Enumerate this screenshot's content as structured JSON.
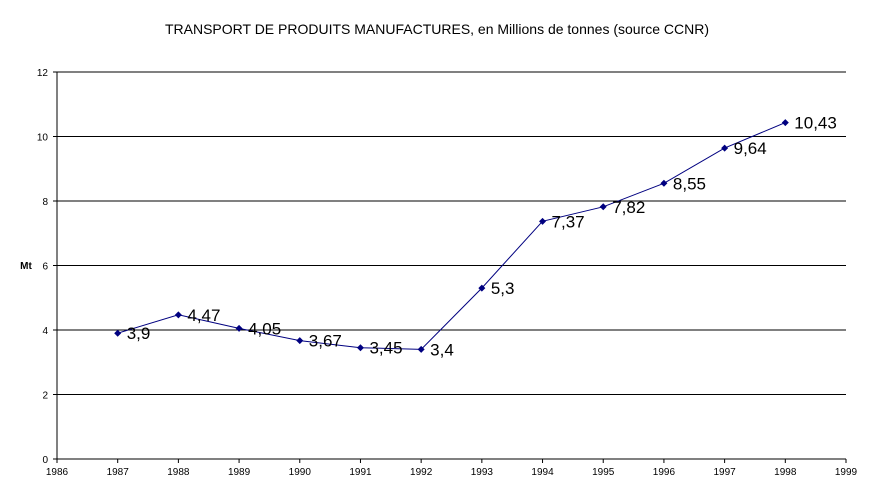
{
  "chart_data": {
    "type": "line",
    "title": "TRANSPORT DE PRODUITS MANUFACTURES, en Millions de tonnes (source CCNR)",
    "xlabel": "",
    "ylabel": "Mt",
    "xlim": [
      1986,
      1999
    ],
    "ylim": [
      0,
      12
    ],
    "x_ticks": [
      "1986",
      "1987",
      "1988",
      "1989",
      "1990",
      "1991",
      "1992",
      "1993",
      "1994",
      "1995",
      "1996",
      "1997",
      "1998",
      "1999"
    ],
    "y_ticks": [
      "0",
      "2",
      "4",
      "6",
      "8",
      "10",
      "12"
    ],
    "grid": "horizontal",
    "series": [
      {
        "x": [
          1987,
          1988,
          1989,
          1990,
          1991,
          1992,
          1993,
          1994,
          1995,
          1996,
          1997,
          1998
        ],
        "values": [
          3.9,
          4.47,
          4.05,
          3.67,
          3.45,
          3.4,
          5.3,
          7.37,
          7.82,
          8.55,
          9.64,
          10.43
        ],
        "labels": [
          "3,9",
          "4,47",
          "4,05",
          "3,67",
          "3,45",
          "3,4",
          "5,3",
          "7,37",
          "7,82",
          "8,55",
          "9,64",
          "10,43"
        ],
        "color": "#000080"
      }
    ]
  }
}
